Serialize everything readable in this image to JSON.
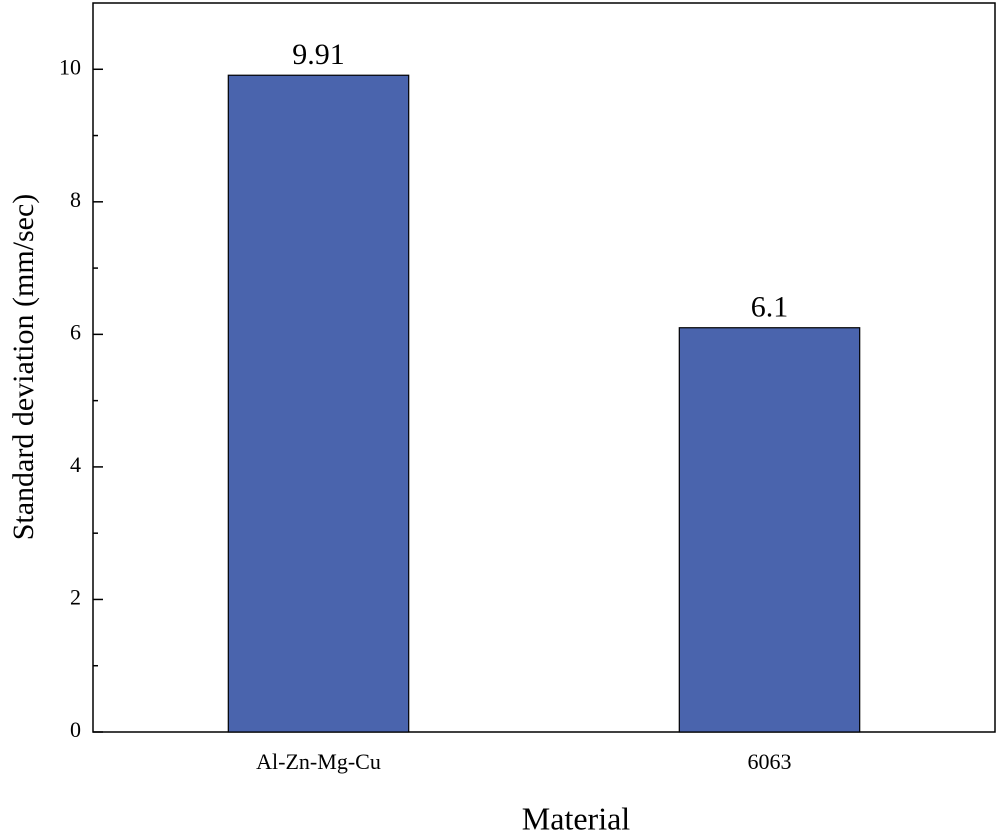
{
  "chart_data": {
    "type": "bar",
    "x_label": "Material",
    "y_label": "Standard deviation (mm/sec)",
    "categories": [
      "Al-Zn-Mg-Cu",
      "6063"
    ],
    "values": [
      9.91,
      6.1
    ],
    "color": "#4a64ad",
    "ylim": [
      0,
      11
    ],
    "yticks": [
      0,
      2,
      4,
      6,
      8,
      10
    ],
    "yminorticks": [
      1,
      3,
      5,
      7,
      9
    ],
    "grid": false,
    "show_value_labels": true
  }
}
